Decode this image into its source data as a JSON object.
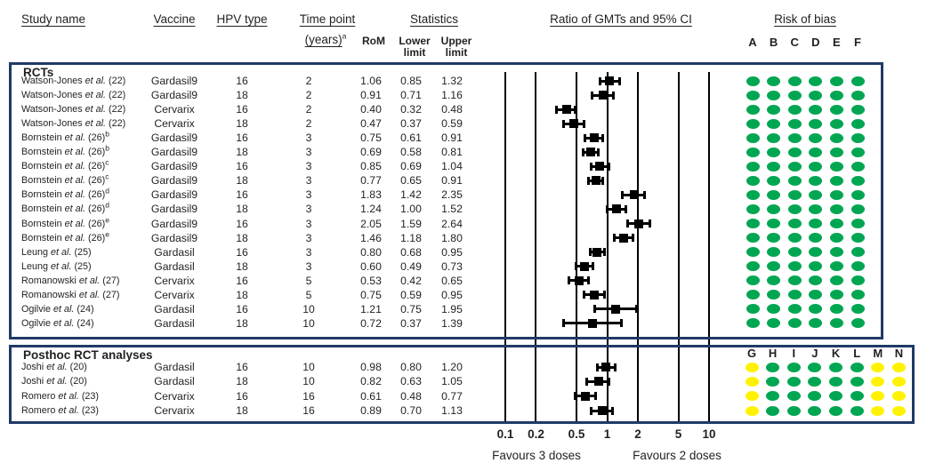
{
  "figure": {
    "columns": {
      "study_name": "Study name",
      "vaccine": "Vaccine",
      "hpv_type": "HPV type",
      "time_point": "Time point",
      "time_point_unit": "(years)",
      "time_point_footnote": "a",
      "statistics": "Statistics",
      "rom": "RoM",
      "lower_limit": "Lower limit",
      "upper_limit": "Upper limit",
      "forest_title": "Ratio of GMTs and 95% CI",
      "risk_of_bias": "Risk of bias"
    },
    "colors": {
      "green": "#00a651",
      "yellow": "#fff200",
      "navy": "#1f3a66",
      "marker_black": "#000000"
    }
  },
  "chart_data": {
    "type": "forest",
    "title": "Ratio of GMTs and 95% CI",
    "x_scale": "log10",
    "x_ticks": [
      0.1,
      0.2,
      0.5,
      1,
      2,
      5,
      10
    ],
    "xlim": [
      0.1,
      10
    ],
    "favours_left": "Favours 3 doses",
    "favours_right": "Favours 2 doses",
    "sections": [
      {
        "label": "RCTs",
        "bias_columns": [
          "A",
          "B",
          "C",
          "D",
          "E",
          "F"
        ],
        "rows": [
          {
            "study": "Watson-Jones",
            "etal": "et al.",
            "ref": "(22)",
            "sup": "",
            "vaccine": "Gardasil9",
            "hpv": "16",
            "time": "2",
            "rom": 1.06,
            "lower": 0.85,
            "upper": 1.32,
            "bias": [
              "green",
              "green",
              "green",
              "green",
              "green",
              "green"
            ]
          },
          {
            "study": "Watson-Jones",
            "etal": "et al.",
            "ref": "(22)",
            "sup": "",
            "vaccine": "Gardasil9",
            "hpv": "18",
            "time": "2",
            "rom": 0.91,
            "lower": 0.71,
            "upper": 1.16,
            "bias": [
              "green",
              "green",
              "green",
              "green",
              "green",
              "green"
            ]
          },
          {
            "study": "Watson-Jones",
            "etal": "et al.",
            "ref": "(22)",
            "sup": "",
            "vaccine": "Cervarix",
            "hpv": "16",
            "time": "2",
            "rom": 0.4,
            "lower": 0.32,
            "upper": 0.48,
            "bias": [
              "green",
              "green",
              "green",
              "green",
              "green",
              "green"
            ]
          },
          {
            "study": "Watson-Jones",
            "etal": "et al.",
            "ref": "(22)",
            "sup": "",
            "vaccine": "Cervarix",
            "hpv": "18",
            "time": "2",
            "rom": 0.47,
            "lower": 0.37,
            "upper": 0.59,
            "bias": [
              "green",
              "green",
              "green",
              "green",
              "green",
              "green"
            ]
          },
          {
            "study": "Bornstein",
            "etal": "et al.",
            "ref": "(26)",
            "sup": "b",
            "vaccine": "Gardasil9",
            "hpv": "16",
            "time": "3",
            "rom": 0.75,
            "lower": 0.61,
            "upper": 0.91,
            "bias": [
              "green",
              "green",
              "green",
              "green",
              "green",
              "green"
            ]
          },
          {
            "study": "Bornstein",
            "etal": "et al.",
            "ref": "(26)",
            "sup": "b",
            "vaccine": "Gardasil9",
            "hpv": "18",
            "time": "3",
            "rom": 0.69,
            "lower": 0.58,
            "upper": 0.81,
            "bias": [
              "green",
              "green",
              "green",
              "green",
              "green",
              "green"
            ]
          },
          {
            "study": "Bornstein",
            "etal": "et al.",
            "ref": "(26)",
            "sup": "c",
            "vaccine": "Gardasil9",
            "hpv": "16",
            "time": "3",
            "rom": 0.85,
            "lower": 0.69,
            "upper": 1.04,
            "bias": [
              "green",
              "green",
              "green",
              "green",
              "green",
              "green"
            ]
          },
          {
            "study": "Bornstein",
            "etal": "et al.",
            "ref": "(26)",
            "sup": "c",
            "vaccine": "Gardasil9",
            "hpv": "18",
            "time": "3",
            "rom": 0.77,
            "lower": 0.65,
            "upper": 0.91,
            "bias": [
              "green",
              "green",
              "green",
              "green",
              "green",
              "green"
            ]
          },
          {
            "study": "Bornstein",
            "etal": "et al.",
            "ref": "(26)",
            "sup": "d",
            "vaccine": "Gardasil9",
            "hpv": "16",
            "time": "3",
            "rom": 1.83,
            "lower": 1.42,
            "upper": 2.35,
            "bias": [
              "green",
              "green",
              "green",
              "green",
              "green",
              "green"
            ]
          },
          {
            "study": "Bornstein",
            "etal": "et al.",
            "ref": "(26)",
            "sup": "d",
            "vaccine": "Gardasil9",
            "hpv": "18",
            "time": "3",
            "rom": 1.24,
            "lower": 1.0,
            "upper": 1.52,
            "bias": [
              "green",
              "green",
              "green",
              "green",
              "green",
              "green"
            ]
          },
          {
            "study": "Bornstein",
            "etal": "et al.",
            "ref": "(26)",
            "sup": "e",
            "vaccine": "Gardasil9",
            "hpv": "16",
            "time": "3",
            "rom": 2.05,
            "lower": 1.59,
            "upper": 2.64,
            "bias": [
              "green",
              "green",
              "green",
              "green",
              "green",
              "green"
            ]
          },
          {
            "study": "Bornstein",
            "etal": "et al.",
            "ref": "(26)",
            "sup": "e",
            "vaccine": "Gardasil9",
            "hpv": "18",
            "time": "3",
            "rom": 1.46,
            "lower": 1.18,
            "upper": 1.8,
            "bias": [
              "green",
              "green",
              "green",
              "green",
              "green",
              "green"
            ]
          },
          {
            "study": "Leung",
            "etal": "et al.",
            "ref": "(25)",
            "sup": "",
            "vaccine": "Gardasil",
            "hpv": "16",
            "time": "3",
            "rom": 0.8,
            "lower": 0.68,
            "upper": 0.95,
            "bias": [
              "green",
              "green",
              "green",
              "green",
              "green",
              "green"
            ]
          },
          {
            "study": "Leung",
            "etal": "et al.",
            "ref": "(25)",
            "sup": "",
            "vaccine": "Gardasil",
            "hpv": "18",
            "time": "3",
            "rom": 0.6,
            "lower": 0.49,
            "upper": 0.73,
            "bias": [
              "green",
              "green",
              "green",
              "green",
              "green",
              "green"
            ]
          },
          {
            "study": "Romanowski",
            "etal": "et al.",
            "ref": "(27)",
            "sup": "",
            "vaccine": "Cervarix",
            "hpv": "16",
            "time": "5",
            "rom": 0.53,
            "lower": 0.42,
            "upper": 0.65,
            "bias": [
              "green",
              "green",
              "green",
              "green",
              "green",
              "green"
            ]
          },
          {
            "study": "Romanowski",
            "etal": "et al.",
            "ref": "(27)",
            "sup": "",
            "vaccine": "Cervarix",
            "hpv": "18",
            "time": "5",
            "rom": 0.75,
            "lower": 0.59,
            "upper": 0.95,
            "bias": [
              "green",
              "green",
              "green",
              "green",
              "green",
              "green"
            ]
          },
          {
            "study": "Ogilvie",
            "etal": "et al.",
            "ref": "(24)",
            "sup": "",
            "vaccine": "Gardasil",
            "hpv": "16",
            "time": "10",
            "rom": 1.21,
            "lower": 0.75,
            "upper": 1.95,
            "bias": [
              "green",
              "green",
              "green",
              "green",
              "green",
              "green"
            ]
          },
          {
            "study": "Ogilvie",
            "etal": "et al.",
            "ref": "(24)",
            "sup": "",
            "vaccine": "Gardasil",
            "hpv": "18",
            "time": "10",
            "rom": 0.72,
            "lower": 0.37,
            "upper": 1.39,
            "bias": [
              "green",
              "green",
              "green",
              "green",
              "green",
              "green"
            ]
          }
        ]
      },
      {
        "label": "Posthoc RCT analyses",
        "bias_columns": [
          "G",
          "H",
          "I",
          "J",
          "K",
          "L",
          "M",
          "N"
        ],
        "rows": [
          {
            "study": "Joshi",
            "etal": "et al.",
            "ref": "(20)",
            "sup": "",
            "vaccine": "Gardasil",
            "hpv": "16",
            "time": "10",
            "rom": 0.98,
            "lower": 0.8,
            "upper": 1.2,
            "bias": [
              "yellow",
              "green",
              "green",
              "green",
              "green",
              "green",
              "yellow",
              "yellow"
            ]
          },
          {
            "study": "Joshi",
            "etal": "et al.",
            "ref": "(20)",
            "sup": "",
            "vaccine": "Gardasil",
            "hpv": "18",
            "time": "10",
            "rom": 0.82,
            "lower": 0.63,
            "upper": 1.05,
            "bias": [
              "yellow",
              "green",
              "green",
              "green",
              "green",
              "green",
              "yellow",
              "yellow"
            ]
          },
          {
            "study": "Romero",
            "etal": "et al.",
            "ref": "(23)",
            "sup": "",
            "vaccine": "Cervarix",
            "hpv": "16",
            "time": "16",
            "rom": 0.61,
            "lower": 0.48,
            "upper": 0.77,
            "bias": [
              "yellow",
              "green",
              "green",
              "green",
              "green",
              "green",
              "yellow",
              "yellow"
            ]
          },
          {
            "study": "Romero",
            "etal": "et al.",
            "ref": "(23)",
            "sup": "",
            "vaccine": "Cervarix",
            "hpv": "18",
            "time": "16",
            "rom": 0.89,
            "lower": 0.7,
            "upper": 1.13,
            "bias": [
              "yellow",
              "green",
              "green",
              "green",
              "green",
              "green",
              "yellow",
              "yellow"
            ]
          }
        ]
      }
    ]
  }
}
